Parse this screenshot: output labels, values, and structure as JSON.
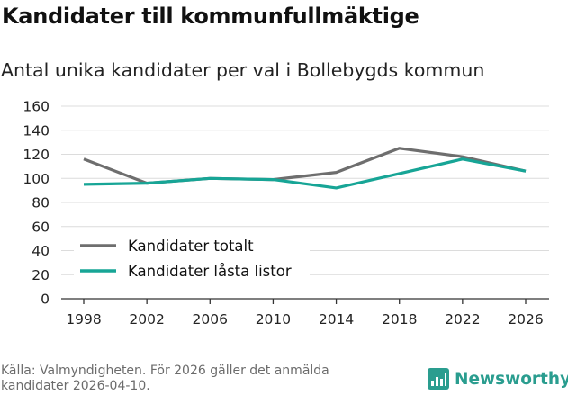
{
  "title": "Kandidater till kommunfullmäktige",
  "subtitle": "Antal unika kandidater per val i Bollebygds kommun",
  "source": "Källa: Valmyndigheten. För 2026 gäller det anmälda kandidater 2026-04-10.",
  "brand": {
    "name": "Newsworthy",
    "color": "#2a9d8f",
    "icon": "bar-chart-logo-icon"
  },
  "chart_data": {
    "type": "line",
    "title": "Kandidater till kommunfullmäktige",
    "subtitle": "Antal unika kandidater per val i Bollebygds kommun",
    "xlabel": "",
    "ylabel": "",
    "ylim": [
      0,
      160
    ],
    "yticks": [
      "0",
      "20",
      "40",
      "60",
      "80",
      "100",
      "120",
      "140",
      "160"
    ],
    "categories": [
      "1998",
      "2002",
      "2006",
      "2010",
      "2014",
      "2018",
      "2022",
      "2026"
    ],
    "series": [
      {
        "name": "Kandidater totalt",
        "color": "#6e6e6e",
        "values": [
          116,
          96,
          100,
          99,
          105,
          125,
          118,
          106
        ]
      },
      {
        "name": "Kandidater låsta listor",
        "color": "#17a596",
        "values": [
          95,
          96,
          100,
          99,
          92,
          104,
          116,
          106
        ]
      }
    ],
    "legend_position": "bottom-left",
    "grid": true
  }
}
